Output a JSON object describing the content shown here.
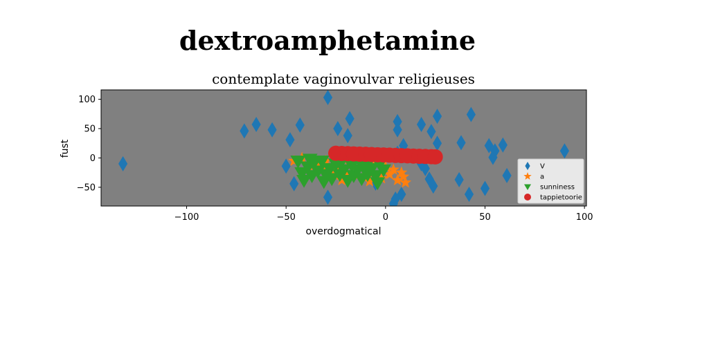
{
  "figure": {
    "suptitle": "dextroamphetamine"
  },
  "chart_data": {
    "type": "scatter",
    "title": "contemplate vaginovulvar religieuses",
    "xlabel": "overdogmatical",
    "ylabel": "fust",
    "xlim": [
      -143,
      101
    ],
    "ylim": [
      -82,
      116
    ],
    "xticks": [
      -100,
      -50,
      0,
      50,
      100
    ],
    "yticks": [
      -50,
      0,
      50,
      100
    ],
    "xtick_labels": [
      "−100",
      "−50",
      "0",
      "50",
      "100"
    ],
    "ytick_labels": [
      "−50",
      "0",
      "50",
      "100"
    ],
    "background": "#808080",
    "grid": false,
    "legend_position": "lower-right",
    "series": [
      {
        "name": "V",
        "marker": "diamond",
        "color": "#1f77b4",
        "points": [
          [
            -132,
            -10
          ],
          [
            -71,
            46
          ],
          [
            -65,
            57
          ],
          [
            -57,
            48
          ],
          [
            -48,
            31
          ],
          [
            -43,
            56
          ],
          [
            -50,
            -14
          ],
          [
            -46,
            -44
          ],
          [
            -29,
            103
          ],
          [
            -24,
            50
          ],
          [
            -18,
            67
          ],
          [
            -19,
            38
          ],
          [
            -29,
            -67
          ],
          [
            -5,
            -43
          ],
          [
            6,
            62
          ],
          [
            6,
            48
          ],
          [
            6,
            8
          ],
          [
            9,
            21
          ],
          [
            18,
            57
          ],
          [
            23,
            45
          ],
          [
            26,
            25
          ],
          [
            26,
            71
          ],
          [
            18,
            -10
          ],
          [
            20,
            -18
          ],
          [
            24,
            -48
          ],
          [
            22,
            -36
          ],
          [
            8,
            -62
          ],
          [
            5,
            -70
          ],
          [
            4,
            -78
          ],
          [
            38,
            26
          ],
          [
            43,
            74
          ],
          [
            37,
            -37
          ],
          [
            42,
            -62
          ],
          [
            50,
            -52
          ],
          [
            52,
            21
          ],
          [
            55,
            12
          ],
          [
            54,
            1
          ],
          [
            59,
            22
          ],
          [
            61,
            -30
          ],
          [
            90,
            12
          ],
          [
            -10,
            -20
          ]
        ]
      },
      {
        "name": "a",
        "marker": "star",
        "color": "#ff7f0e",
        "points": [
          [
            -46,
            -5
          ],
          [
            -42,
            0
          ],
          [
            -37,
            -15
          ],
          [
            -32,
            -20
          ],
          [
            -30,
            -5
          ],
          [
            -28,
            -22
          ],
          [
            -26,
            -28
          ],
          [
            -24,
            -15
          ],
          [
            -22,
            -38
          ],
          [
            -18,
            -10
          ],
          [
            -14,
            -30
          ],
          [
            -10,
            -18
          ],
          [
            -6,
            -25
          ],
          [
            -2,
            -35
          ],
          [
            0,
            -15
          ],
          [
            2,
            -28
          ],
          [
            4,
            -20
          ],
          [
            6,
            -38
          ],
          [
            8,
            -25
          ],
          [
            10,
            -42
          ],
          [
            9,
            -32
          ],
          [
            -8,
            -40
          ],
          [
            -20,
            -25
          ],
          [
            -34,
            -10
          ],
          [
            -5,
            -5
          ]
        ]
      },
      {
        "name": "sunniness",
        "marker": "triangle-down",
        "color": "#2ca02c",
        "points": [
          [
            -44,
            -5
          ],
          [
            -42,
            -25
          ],
          [
            -41,
            -38
          ],
          [
            -39,
            -15
          ],
          [
            -37,
            -30
          ],
          [
            -36,
            -8
          ],
          [
            -34,
            -22
          ],
          [
            -32,
            -5
          ],
          [
            -30,
            -28
          ],
          [
            -28,
            -18
          ],
          [
            -27,
            -35
          ],
          [
            -25,
            -10
          ],
          [
            -23,
            -28
          ],
          [
            -21,
            -20
          ],
          [
            -19,
            -38
          ],
          [
            -17,
            -12
          ],
          [
            -16,
            -30
          ],
          [
            -14,
            -20
          ],
          [
            -12,
            -35
          ],
          [
            -10,
            -15
          ],
          [
            -9,
            -28
          ],
          [
            -7,
            -18
          ],
          [
            -5,
            -30
          ],
          [
            -3,
            -10
          ],
          [
            -4,
            -42
          ],
          [
            -22,
            -5
          ],
          [
            -38,
            -2
          ],
          [
            -31,
            -40
          ],
          [
            -13,
            -5
          ],
          [
            -1,
            -20
          ]
        ]
      },
      {
        "name": "tappietoorie",
        "marker": "circle",
        "color": "#d62728",
        "points": [
          [
            -25,
            8
          ],
          [
            -22,
            7.6
          ],
          [
            -19,
            7.3
          ],
          [
            -16,
            6.9
          ],
          [
            -13,
            6.5
          ],
          [
            -10,
            6.2
          ],
          [
            -7,
            5.8
          ],
          [
            -4,
            5.4
          ],
          [
            -1,
            5.1
          ],
          [
            2,
            4.7
          ],
          [
            5,
            4.3
          ],
          [
            8,
            3.9
          ],
          [
            11,
            3.6
          ],
          [
            14,
            3.2
          ],
          [
            17,
            2.8
          ],
          [
            20,
            2.5
          ],
          [
            23,
            2.1
          ],
          [
            25,
            1.8
          ]
        ]
      }
    ]
  }
}
